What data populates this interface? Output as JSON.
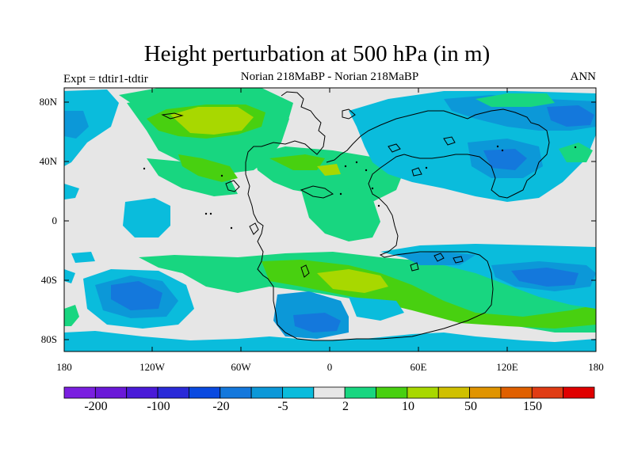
{
  "title": "Height perturbation at 500 hPa (in m)",
  "experiment_label": "Expt = tdtir1-tdtir",
  "subtitle": "Norian   218MaBP - Norian   218MaBP",
  "season": "ANN",
  "y_axis": {
    "ticks": [
      "80N",
      "40N",
      "0",
      "40S",
      "80S"
    ]
  },
  "x_axis": {
    "ticks": [
      "180",
      "120W",
      "60W",
      "0",
      "60E",
      "120E",
      "180"
    ]
  },
  "colorbar": {
    "colors": [
      "#7a1fe0",
      "#6a18d8",
      "#4a1ad8",
      "#2a2ad8",
      "#0a4ae0",
      "#1478dc",
      "#0c98d8",
      "#0abcdc",
      "#e6e6e6",
      "#18d680",
      "#48d010",
      "#a8d800",
      "#d0c000",
      "#e09400",
      "#e06000",
      "#e03c14",
      "#e00000"
    ],
    "labels": [
      "-200",
      "-100",
      "-20",
      "-5",
      "2",
      "10",
      "50",
      "150"
    ]
  },
  "legend_colors": {
    "background": "#e6e6e6",
    "light_blue": "#0abcdc",
    "mid_blue": "#0c98d8",
    "blue": "#1478dc",
    "green": "#18d680",
    "bright_green": "#48d010",
    "yellow_green": "#a8d800"
  }
}
